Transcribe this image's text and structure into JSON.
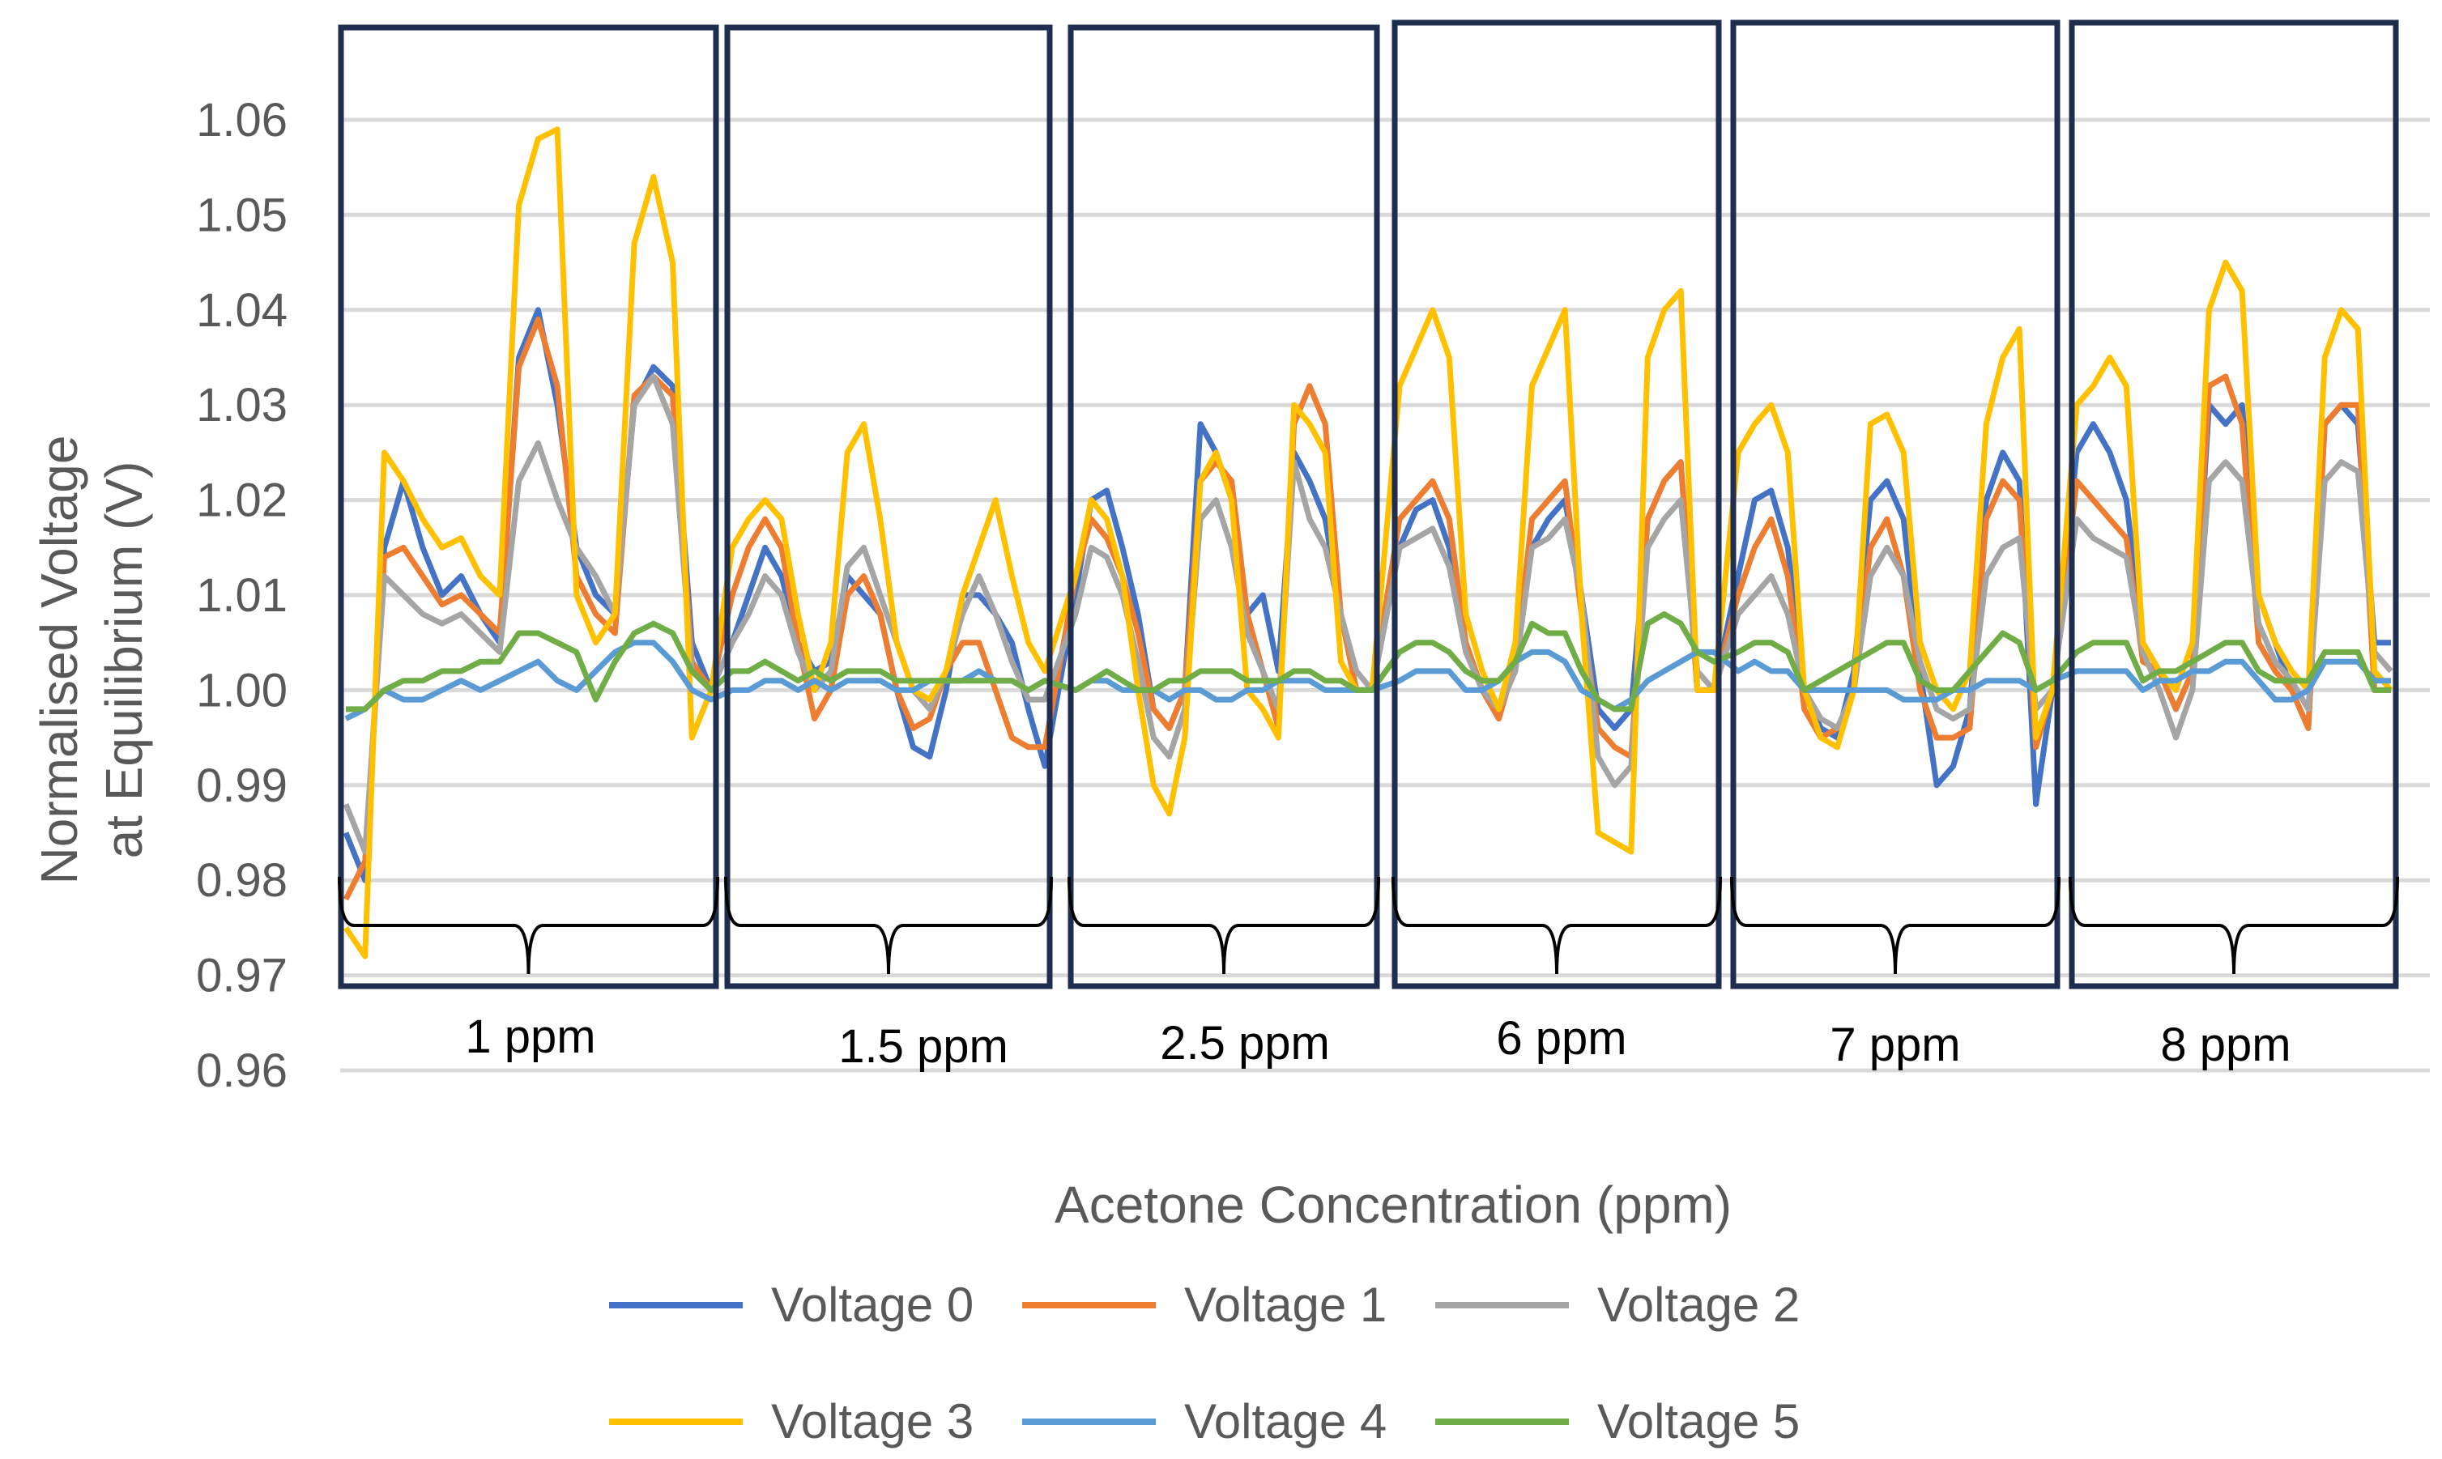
{
  "chart_data": {
    "type": "line",
    "title": "",
    "xlabel": "Acetone Concentration (ppm)",
    "ylabel": "Normalised Voltage at Equilibrium (V)",
    "ylabel_lines": [
      "Normalised Voltage",
      "at Equilibrium (V)"
    ],
    "ylim": [
      0.96,
      1.06
    ],
    "yticks": [
      0.96,
      0.97,
      0.98,
      0.99,
      1.0,
      1.01,
      1.02,
      1.03,
      1.04,
      1.05,
      1.06
    ],
    "ytick_labels": [
      "0.96",
      "0.97",
      "0.98",
      "0.99",
      "1.00",
      "1.01",
      "1.02",
      "1.03",
      "1.04",
      "1.05",
      "1.06"
    ],
    "grid": true,
    "legend_position": "bottom",
    "groups": [
      "1 ppm",
      "1.5 ppm",
      "2.5 ppm",
      "6 ppm",
      "7 ppm",
      "8 ppm"
    ],
    "samples_per_group": 20,
    "series": [
      {
        "name": "Voltage 0",
        "color": "#4472C4",
        "values": [
          0.985,
          0.98,
          1.015,
          1.022,
          1.015,
          1.01,
          1.012,
          1.008,
          1.005,
          1.035,
          1.04,
          1.03,
          1.015,
          1.01,
          1.008,
          1.03,
          1.034,
          1.032,
          1.005,
          1.0,
          1.005,
          1.01,
          1.015,
          1.012,
          1.005,
          1.002,
          1.003,
          1.012,
          1.01,
          1.008,
          1.0,
          0.994,
          0.993,
          1.0,
          1.01,
          1.01,
          1.008,
          1.005,
          0.998,
          0.992,
          1.01,
          1.02,
          1.021,
          1.015,
          1.008,
          0.998,
          0.996,
          1.0,
          1.028,
          1.025,
          1.02,
          1.008,
          1.01,
          1.002,
          1.025,
          1.022,
          1.018,
          1.008,
          1.0,
          1.0,
          1.015,
          1.019,
          1.02,
          1.015,
          1.005,
          1.0,
          0.997,
          1.003,
          1.015,
          1.018,
          1.02,
          1.01,
          0.998,
          0.996,
          0.998,
          1.018,
          1.022,
          1.024,
          1.0,
          1.0,
          1.012,
          1.02,
          1.021,
          1.015,
          1.0,
          0.996,
          0.995,
          1.002,
          1.02,
          1.022,
          1.018,
          1.002,
          0.99,
          0.992,
          0.998,
          1.02,
          1.025,
          1.022,
          0.988,
          1.0,
          1.025,
          1.028,
          1.025,
          1.02,
          1.005,
          1.002,
          0.998,
          1.002,
          1.03,
          1.028,
          1.03,
          1.01,
          1.005,
          1.0,
          0.996,
          1.028,
          1.03,
          1.028,
          1.005,
          1.005
        ]
      },
      {
        "name": "Voltage 1",
        "color": "#ED7D31",
        "values": [
          0.978,
          0.982,
          1.014,
          1.015,
          1.012,
          1.009,
          1.01,
          1.008,
          1.006,
          1.034,
          1.039,
          1.032,
          1.012,
          1.008,
          1.006,
          1.031,
          1.033,
          1.031,
          1.003,
          1.0,
          1.01,
          1.015,
          1.018,
          1.015,
          1.005,
          0.997,
          1.0,
          1.01,
          1.012,
          1.008,
          1.0,
          0.996,
          0.997,
          1.002,
          1.005,
          1.005,
          1.0,
          0.995,
          0.994,
          0.994,
          1.012,
          1.018,
          1.016,
          1.012,
          1.006,
          0.998,
          0.996,
          1.0,
          1.022,
          1.024,
          1.022,
          1.008,
          1.002,
          0.996,
          1.028,
          1.032,
          1.028,
          1.008,
          1.0,
          1.0,
          1.018,
          1.02,
          1.022,
          1.018,
          1.005,
          1.0,
          0.997,
          1.003,
          1.018,
          1.02,
          1.022,
          1.008,
          0.996,
          0.994,
          0.993,
          1.018,
          1.022,
          1.024,
          1.0,
          1.0,
          1.01,
          1.015,
          1.018,
          1.012,
          0.998,
          0.995,
          0.996,
          1.0,
          1.015,
          1.018,
          1.012,
          1.0,
          0.995,
          0.995,
          0.996,
          1.018,
          1.022,
          1.02,
          0.994,
          1.0,
          1.022,
          1.02,
          1.018,
          1.016,
          1.003,
          1.002,
          0.998,
          1.002,
          1.032,
          1.033,
          1.028,
          1.005,
          1.002,
          1.0,
          0.996,
          1.028,
          1.03,
          1.03,
          1.0,
          1.0
        ]
      },
      {
        "name": "Voltage 2",
        "color": "#A5A5A5",
        "values": [
          0.988,
          0.983,
          1.012,
          1.01,
          1.008,
          1.007,
          1.008,
          1.006,
          1.004,
          1.022,
          1.026,
          1.02,
          1.015,
          1.012,
          1.008,
          1.03,
          1.033,
          1.028,
          1.002,
          1.0,
          1.005,
          1.008,
          1.012,
          1.01,
          1.004,
          1.0,
          1.002,
          1.013,
          1.015,
          1.01,
          1.005,
          1.0,
          0.998,
          1.002,
          1.008,
          1.012,
          1.008,
          1.003,
          0.999,
          0.999,
          1.008,
          1.015,
          1.014,
          1.01,
          1.003,
          0.995,
          0.993,
          0.998,
          1.018,
          1.02,
          1.015,
          1.006,
          1.002,
          0.998,
          1.024,
          1.018,
          1.015,
          1.008,
          1.002,
          1.0,
          1.015,
          1.016,
          1.017,
          1.013,
          1.004,
          1.0,
          0.998,
          1.002,
          1.015,
          1.016,
          1.018,
          1.01,
          0.993,
          0.99,
          0.992,
          1.015,
          1.018,
          1.02,
          1.002,
          1.0,
          1.008,
          1.01,
          1.012,
          1.008,
          1.0,
          0.997,
          0.996,
          1.0,
          1.012,
          1.015,
          1.012,
          1.003,
          0.998,
          0.997,
          0.998,
          1.012,
          1.015,
          1.016,
          0.998,
          1.0,
          1.018,
          1.016,
          1.015,
          1.014,
          1.004,
          1.0,
          0.995,
          1.0,
          1.022,
          1.024,
          1.022,
          1.007,
          1.003,
          1.001,
          0.998,
          1.022,
          1.024,
          1.023,
          1.004,
          1.002
        ]
      },
      {
        "name": "Voltage 3",
        "color": "#FFC000",
        "values": [
          0.975,
          0.972,
          1.025,
          1.022,
          1.018,
          1.015,
          1.016,
          1.012,
          1.01,
          1.051,
          1.058,
          1.059,
          1.01,
          1.005,
          1.008,
          1.047,
          1.054,
          1.045,
          0.995,
          1.0,
          1.015,
          1.018,
          1.02,
          1.018,
          1.008,
          1.0,
          1.005,
          1.025,
          1.028,
          1.018,
          1.005,
          1.0,
          0.999,
          1.002,
          1.01,
          1.015,
          1.02,
          1.012,
          1.005,
          1.002,
          1.012,
          1.02,
          1.018,
          1.012,
          1.0,
          0.99,
          0.987,
          0.995,
          1.022,
          1.025,
          1.02,
          1.0,
          0.998,
          0.995,
          1.03,
          1.028,
          1.025,
          1.003,
          1.0,
          1.0,
          1.032,
          1.036,
          1.04,
          1.035,
          1.008,
          1.002,
          0.998,
          1.005,
          1.032,
          1.036,
          1.04,
          1.008,
          0.985,
          0.984,
          0.983,
          1.035,
          1.04,
          1.042,
          1.0,
          1.0,
          1.025,
          1.028,
          1.03,
          1.025,
          1.0,
          0.995,
          0.994,
          1.0,
          1.028,
          1.029,
          1.025,
          1.005,
          1.0,
          0.998,
          1.002,
          1.028,
          1.035,
          1.038,
          0.995,
          1.0,
          1.03,
          1.032,
          1.035,
          1.032,
          1.005,
          1.002,
          1.0,
          1.005,
          1.04,
          1.045,
          1.042,
          1.01,
          1.005,
          1.002,
          1.0,
          1.035,
          1.04,
          1.038,
          1.002,
          1.0
        ]
      },
      {
        "name": "Voltage 4",
        "color": "#5B9BD5",
        "values": [
          0.997,
          0.998,
          1.0,
          0.999,
          0.999,
          1.0,
          1.001,
          1.0,
          1.001,
          1.002,
          1.003,
          1.001,
          1.0,
          1.002,
          1.004,
          1.005,
          1.005,
          1.003,
          1.0,
          0.999,
          1.0,
          1.0,
          1.001,
          1.001,
          1.0,
          1.001,
          1.0,
          1.001,
          1.001,
          1.001,
          1.0,
          1.0,
          1.001,
          1.001,
          1.001,
          1.002,
          1.001,
          1.001,
          1.0,
          1.001,
          1.0,
          1.001,
          1.001,
          1.0,
          1.0,
          1.0,
          0.999,
          1.0,
          1.0,
          0.999,
          0.999,
          1.0,
          1.0,
          1.001,
          1.001,
          1.001,
          1.0,
          1.0,
          1.0,
          1.0,
          1.001,
          1.002,
          1.002,
          1.002,
          1.0,
          1.0,
          1.001,
          1.003,
          1.004,
          1.004,
          1.003,
          1.0,
          0.999,
          0.998,
          0.999,
          1.001,
          1.002,
          1.003,
          1.004,
          1.004,
          1.002,
          1.003,
          1.002,
          1.002,
          1.0,
          1.0,
          1.0,
          1.0,
          1.0,
          1.0,
          0.999,
          0.999,
          0.999,
          1.0,
          1.0,
          1.001,
          1.001,
          1.001,
          1.0,
          1.001,
          1.002,
          1.002,
          1.002,
          1.002,
          1.0,
          1.001,
          1.001,
          1.002,
          1.002,
          1.003,
          1.003,
          1.001,
          0.999,
          0.999,
          1.0,
          1.003,
          1.003,
          1.003,
          1.001,
          1.001
        ]
      },
      {
        "name": "Voltage 5",
        "color": "#70AD47",
        "values": [
          0.998,
          0.998,
          1.0,
          1.001,
          1.001,
          1.002,
          1.002,
          1.003,
          1.003,
          1.006,
          1.006,
          1.005,
          1.004,
          0.999,
          1.003,
          1.006,
          1.007,
          1.006,
          1.002,
          1.0,
          1.002,
          1.002,
          1.003,
          1.002,
          1.001,
          1.002,
          1.001,
          1.002,
          1.002,
          1.002,
          1.001,
          1.001,
          1.001,
          1.001,
          1.001,
          1.001,
          1.001,
          1.001,
          1.0,
          1.001,
          1.0,
          1.001,
          1.002,
          1.001,
          1.0,
          1.0,
          1.001,
          1.001,
          1.002,
          1.002,
          1.002,
          1.001,
          1.001,
          1.001,
          1.002,
          1.002,
          1.001,
          1.001,
          1.0,
          1.0,
          1.004,
          1.005,
          1.005,
          1.004,
          1.002,
          1.001,
          1.001,
          1.003,
          1.007,
          1.006,
          1.006,
          1.002,
          0.999,
          0.998,
          0.998,
          1.007,
          1.008,
          1.007,
          1.004,
          1.003,
          1.004,
          1.005,
          1.005,
          1.004,
          1.0,
          1.001,
          1.002,
          1.003,
          1.004,
          1.005,
          1.005,
          1.001,
          1.0,
          1.0,
          1.002,
          1.004,
          1.006,
          1.005,
          1.0,
          1.001,
          1.004,
          1.005,
          1.005,
          1.005,
          1.001,
          1.002,
          1.002,
          1.003,
          1.004,
          1.005,
          1.005,
          1.002,
          1.001,
          1.001,
          1.001,
          1.004,
          1.004,
          1.004,
          1.0,
          1.0
        ]
      }
    ]
  }
}
